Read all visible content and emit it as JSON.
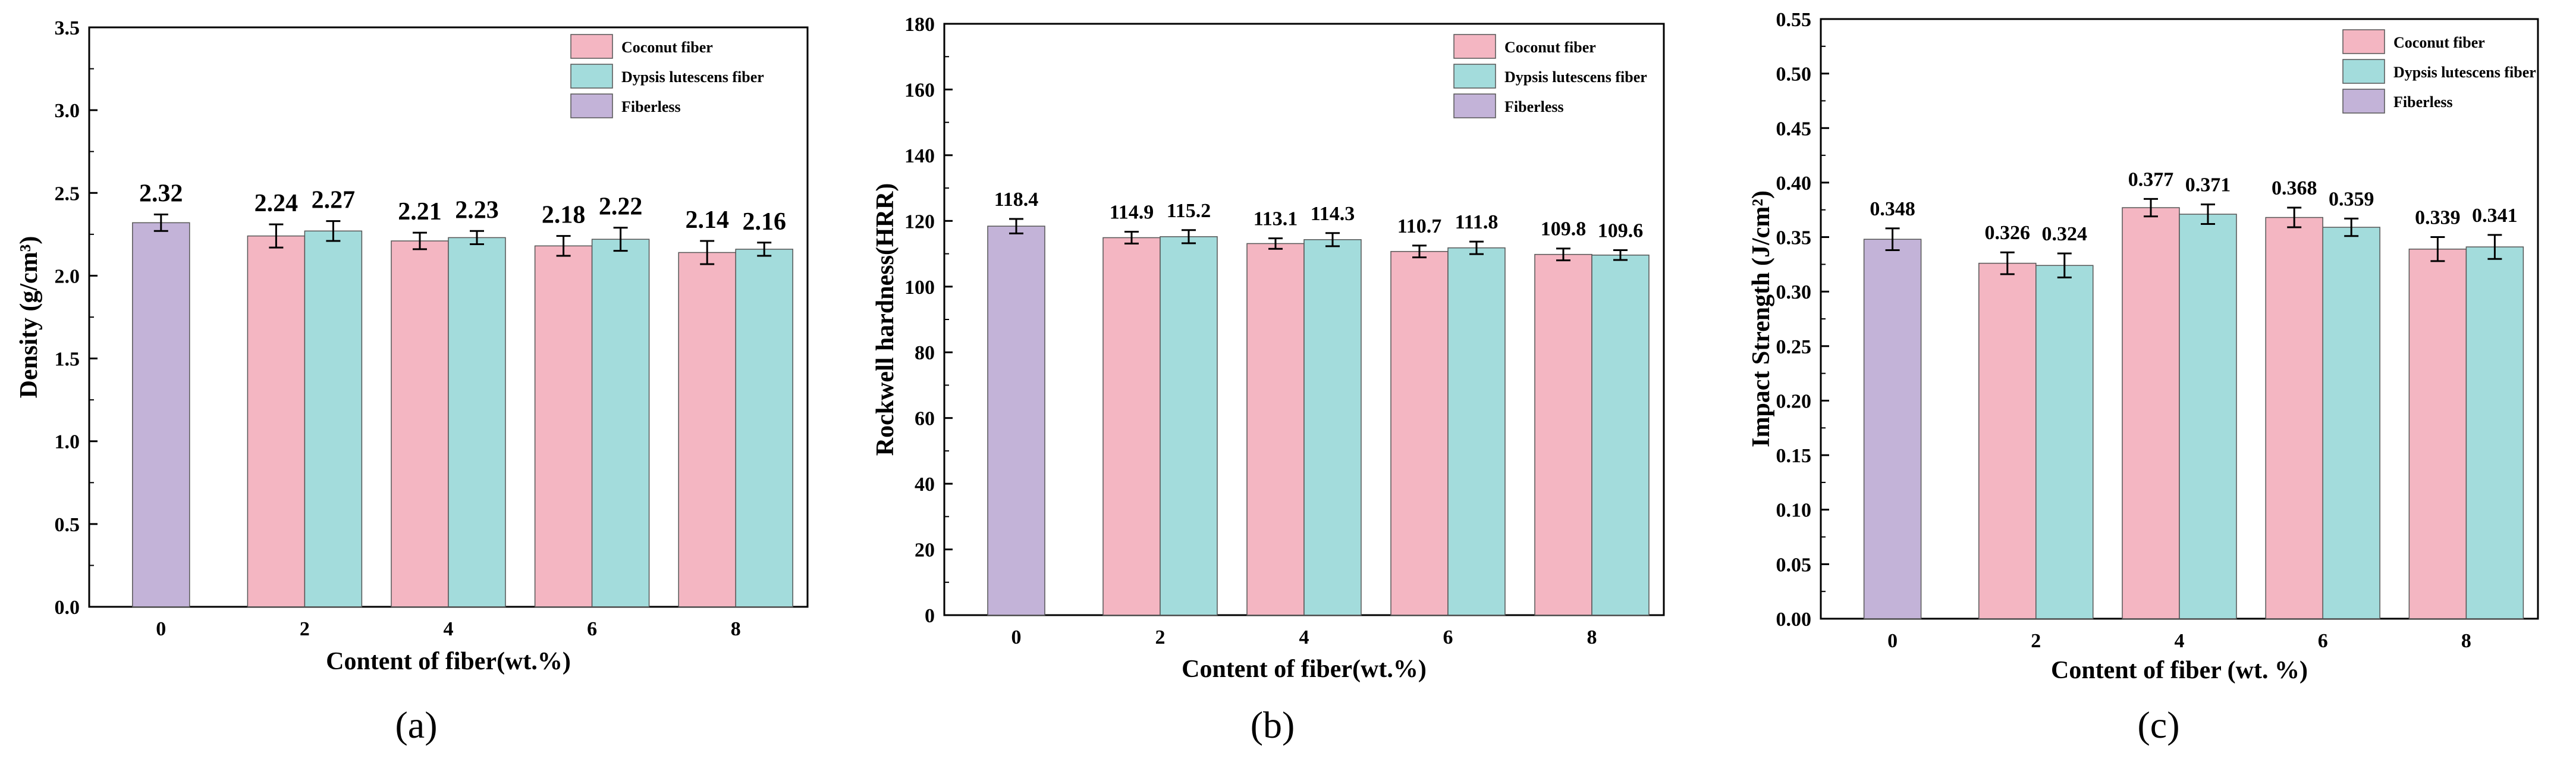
{
  "colors": {
    "coconut": "#f4b6c2",
    "dypsis": "#a3dcdc",
    "fiberless": "#c3b3d8",
    "axis": "#000000"
  },
  "chart_data": [
    {
      "id": "a",
      "type": "bar",
      "panel_label": "a",
      "xlabel": "Content of fiber(wt.%)",
      "ylabel": "Density (g/cm³)",
      "ylim": [
        0.0,
        3.5
      ],
      "yticks": [
        "0.0",
        "0.5",
        "1.0",
        "1.5",
        "2.0",
        "2.5",
        "3.0",
        "3.5"
      ],
      "categories": [
        "0",
        "2",
        "4",
        "6",
        "8"
      ],
      "legend": [
        "Coconut fiber",
        "Dypsis lutescens fiber",
        "Fiberless"
      ],
      "legend_position": "top-right",
      "fiberless": {
        "value": 2.32,
        "err": 0.05,
        "label": "2.32"
      },
      "series": [
        {
          "name": "Coconut fiber",
          "values": [
            null,
            2.24,
            2.21,
            2.18,
            2.14
          ],
          "errors": [
            null,
            0.07,
            0.05,
            0.06,
            0.07
          ],
          "labels": [
            "",
            "2.24",
            "2.21",
            "2.18",
            "2.14"
          ]
        },
        {
          "name": "Dypsis lutescens fiber",
          "values": [
            null,
            2.27,
            2.23,
            2.22,
            2.16
          ],
          "errors": [
            null,
            0.06,
            0.04,
            0.07,
            0.04
          ],
          "labels": [
            "",
            "2.27",
            "2.23",
            "2.22",
            "2.16"
          ]
        }
      ]
    },
    {
      "id": "b",
      "type": "bar",
      "panel_label": "b",
      "xlabel": "Content of fiber(wt.%)",
      "ylabel": "Rockwell hardness(HRR)",
      "ylim": [
        0,
        180
      ],
      "yticks": [
        "0",
        "20",
        "40",
        "60",
        "80",
        "100",
        "120",
        "140",
        "160",
        "180"
      ],
      "categories": [
        "0",
        "2",
        "4",
        "6",
        "8"
      ],
      "legend": [
        "Coconut fiber",
        "Dypsis lutescens fiber",
        "Fiberless"
      ],
      "legend_position": "top-right",
      "fiberless": {
        "value": 118.4,
        "err": 2.2,
        "label": "118.4"
      },
      "series": [
        {
          "name": "Coconut fiber",
          "values": [
            null,
            114.9,
            113.1,
            110.7,
            109.8
          ],
          "errors": [
            null,
            1.8,
            1.6,
            1.8,
            1.8
          ],
          "labels": [
            "",
            "114.9",
            "113.1",
            "110.7",
            "109.8"
          ]
        },
        {
          "name": "Dypsis lutescens fiber",
          "values": [
            null,
            115.2,
            114.3,
            111.8,
            109.6
          ],
          "errors": [
            null,
            2.0,
            2.0,
            1.9,
            1.5
          ],
          "labels": [
            "",
            "115.2",
            "114.3",
            "111.8",
            "109.6"
          ]
        }
      ]
    },
    {
      "id": "c",
      "type": "bar",
      "panel_label": "c",
      "xlabel": "Content of fiber (wt. %)",
      "ylabel": "Impact Strength (J/cm²)",
      "ylim": [
        0.0,
        0.55
      ],
      "yticks": [
        "0.00",
        "0.05",
        "0.10",
        "0.15",
        "0.20",
        "0.25",
        "0.30",
        "0.35",
        "0.40",
        "0.45",
        "0.50",
        "0.55"
      ],
      "categories": [
        "0",
        "2",
        "4",
        "6",
        "8"
      ],
      "legend": [
        "Coconut fiber",
        "Dypsis lutescens fiber",
        "Fiberless"
      ],
      "legend_position": "top-right",
      "fiberless": {
        "value": 0.348,
        "err": 0.01,
        "label": "0.348"
      },
      "series": [
        {
          "name": "Coconut fiber",
          "values": [
            null,
            0.326,
            0.377,
            0.368,
            0.339
          ],
          "errors": [
            null,
            0.01,
            0.008,
            0.009,
            0.011
          ],
          "labels": [
            "",
            "0.326",
            "0.377",
            "0.368",
            "0.339"
          ]
        },
        {
          "name": "Dypsis lutescens fiber",
          "values": [
            null,
            0.324,
            0.371,
            0.359,
            0.341
          ],
          "errors": [
            null,
            0.011,
            0.009,
            0.008,
            0.011
          ],
          "labels": [
            "",
            "0.324",
            "0.371",
            "0.359",
            "0.341"
          ]
        }
      ]
    }
  ]
}
